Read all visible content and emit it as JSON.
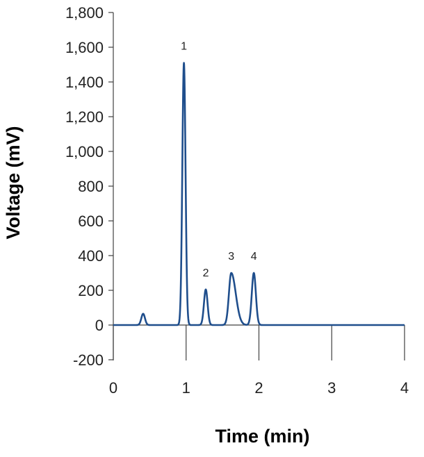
{
  "chart_data": {
    "type": "line",
    "title": "",
    "xlabel": "Time (min)",
    "ylabel": "Voltage (mV)",
    "xlim": [
      0,
      4
    ],
    "ylim": [
      -200,
      1800
    ],
    "x_ticks": [
      "0",
      "1",
      "2",
      "3",
      "4"
    ],
    "y_ticks": [
      "-200",
      "0",
      "200",
      "400",
      "600",
      "800",
      "1,000",
      "1,200",
      "1,400",
      "1,600",
      "1,800"
    ],
    "grid": false,
    "legend": "none",
    "line_color": "#1f4e8c",
    "series": [
      {
        "baseline": 0,
        "peaks": [
          {
            "label": "",
            "x": 0.41,
            "y": 65,
            "width": 0.025
          },
          {
            "label": "1",
            "x": 0.97,
            "y": 1510,
            "width": 0.022
          },
          {
            "label": "2",
            "x": 1.27,
            "y": 205,
            "width": 0.025
          },
          {
            "label": "3",
            "x": 1.62,
            "y": 300,
            "width": 0.032,
            "tail": 0.06
          },
          {
            "label": "4",
            "x": 1.93,
            "y": 300,
            "width": 0.028
          }
        ]
      }
    ]
  }
}
